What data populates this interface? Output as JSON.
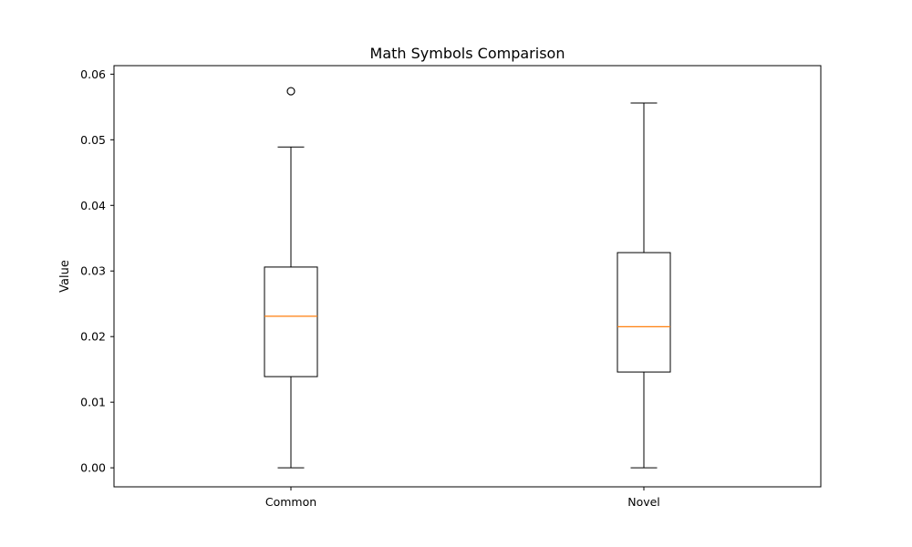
{
  "chart_data": {
    "type": "box",
    "title": "Math Symbols Comparison",
    "xlabel": "",
    "ylabel": "Value",
    "ylim": [
      -0.0029,
      0.0613
    ],
    "yticks": [
      0.0,
      0.01,
      0.02,
      0.03,
      0.04,
      0.05,
      0.06
    ],
    "ytick_labels": [
      "0.00",
      "0.01",
      "0.02",
      "0.03",
      "0.04",
      "0.05",
      "0.06"
    ],
    "grid": false,
    "categories": [
      "Common",
      "Novel"
    ],
    "boxes": [
      {
        "category": "Common",
        "whisker_low": 0.0,
        "q1": 0.0139,
        "median": 0.0231,
        "q3": 0.0306,
        "whisker_high": 0.0489,
        "outliers": [
          0.0574
        ]
      },
      {
        "category": "Novel",
        "whisker_low": 0.0,
        "q1": 0.0146,
        "median": 0.0215,
        "q3": 0.0328,
        "whisker_high": 0.0556,
        "outliers": []
      }
    ],
    "colors": {
      "box": "#000000",
      "median": "#ff7f0e",
      "whisker": "#000000",
      "outlier": "#000000",
      "axes": "#000000",
      "background": "#ffffff"
    }
  }
}
